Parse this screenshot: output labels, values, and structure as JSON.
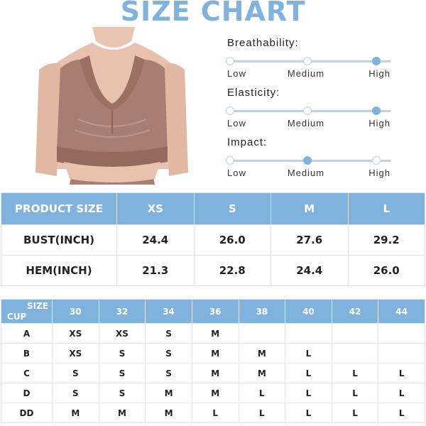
{
  "header": {
    "title": "SIZE CHART"
  },
  "ratings": [
    {
      "title": "Breathability:",
      "scale": [
        "Low",
        "Medium",
        "High"
      ],
      "selected": "High"
    },
    {
      "title": "Elasticity:",
      "scale": [
        "Low",
        "Medium",
        "High"
      ],
      "selected": "High"
    },
    {
      "title": "Impact:",
      "scale": [
        "Low",
        "Medium",
        "High"
      ],
      "selected": "Medium"
    }
  ],
  "product_table": {
    "header_label": "PRODUCT SIZE",
    "sizes": [
      "XS",
      "S",
      "M",
      "L"
    ],
    "rows": [
      {
        "label": "BUST(INCH)",
        "values": [
          "24.4",
          "26.0",
          "27.6",
          "29.2"
        ]
      },
      {
        "label": "HEM(INCH)",
        "values": [
          "21.3",
          "22.8",
          "24.4",
          "26.0"
        ]
      }
    ]
  },
  "cup_table": {
    "corner_size": "SIZE",
    "corner_cup": "CUP",
    "bands": [
      "30",
      "32",
      "34",
      "36",
      "38",
      "40",
      "42",
      "44"
    ],
    "rows": [
      {
        "cup": "A",
        "values": [
          "XS",
          "XS",
          "S",
          "M",
          "",
          "",
          "",
          ""
        ]
      },
      {
        "cup": "B",
        "values": [
          "XS",
          "S",
          "S",
          "M",
          "M",
          "L",
          "",
          ""
        ]
      },
      {
        "cup": "C",
        "values": [
          "S",
          "S",
          "S",
          "M",
          "M",
          "L",
          "L",
          "L"
        ]
      },
      {
        "cup": "D",
        "values": [
          "S",
          "S",
          "M",
          "M",
          "L",
          "L",
          "L",
          "L"
        ]
      },
      {
        "cup": "DD",
        "values": [
          "M",
          "M",
          "M",
          "L",
          "L",
          "L",
          "L",
          "L"
        ]
      }
    ]
  },
  "colors": {
    "accent": "#7fb2dd",
    "row_header": "#dedede",
    "garment": "#a87d72"
  }
}
